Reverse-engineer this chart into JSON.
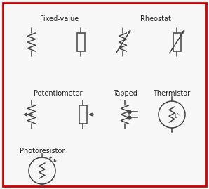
{
  "bg_color": "#f7f7f7",
  "border_color": "#cc0000",
  "line_color": "#444444",
  "text_color": "#222222",
  "labels": {
    "fixed_value": "Fixed-value",
    "rheostat": "Rheostat",
    "potentiometer": "Potentiometer",
    "tapped": "Tapped",
    "thermistor": "Thermistor",
    "photoresistor": "Photoresistor"
  },
  "font_size": 7.0
}
